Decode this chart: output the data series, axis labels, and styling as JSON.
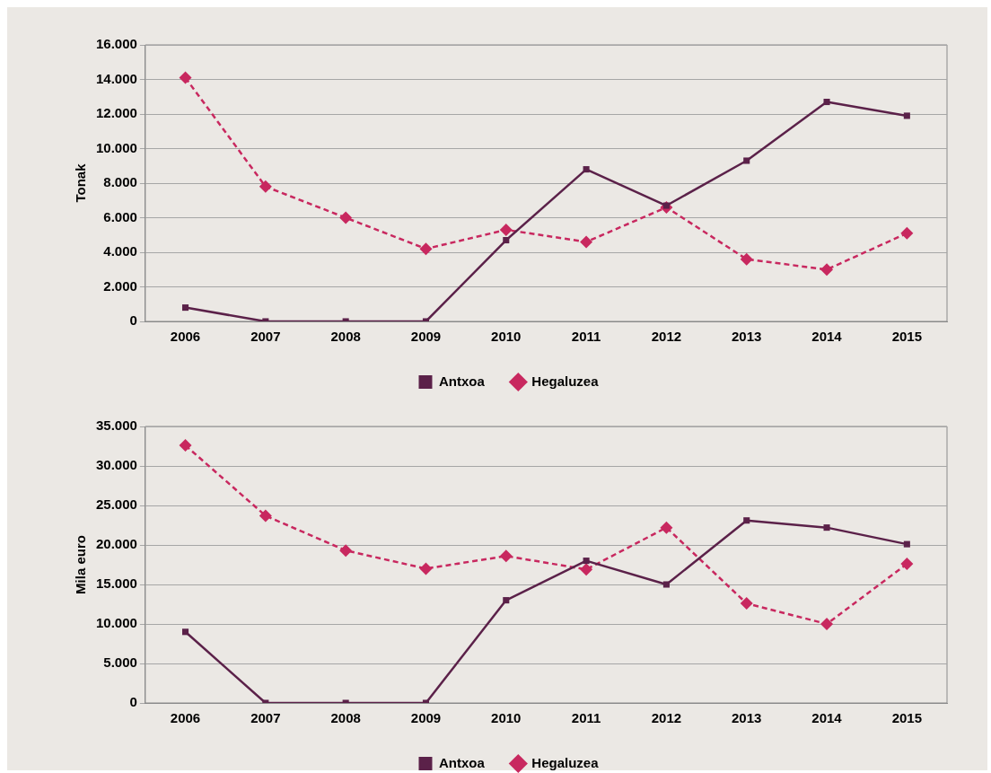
{
  "chart_data": [
    {
      "type": "line",
      "ylabel": "Tonak",
      "categories": [
        "2006",
        "2007",
        "2008",
        "2009",
        "2010",
        "2011",
        "2012",
        "2013",
        "2014",
        "2015"
      ],
      "series": [
        {
          "name": "Antxoa",
          "color": "#5b2149",
          "marker": "square",
          "line_style": "solid",
          "values": [
            800,
            0,
            0,
            0,
            4700,
            8800,
            6700,
            9300,
            12700,
            11900
          ]
        },
        {
          "name": "Hegaluzea",
          "color": "#c8285f",
          "marker": "diamond",
          "line_style": "dashed",
          "values": [
            14100,
            7800,
            6000,
            4200,
            5300,
            4600,
            6600,
            3600,
            3000,
            5100
          ]
        }
      ],
      "ylim": [
        0,
        16000
      ],
      "yticks": [
        {
          "value": 0,
          "label": "0"
        },
        {
          "value": 2000,
          "label": "2.000"
        },
        {
          "value": 4000,
          "label": "4.000"
        },
        {
          "value": 6000,
          "label": "6.000"
        },
        {
          "value": 8000,
          "label": "8.000"
        },
        {
          "value": 10000,
          "label": "10.000"
        },
        {
          "value": 12000,
          "label": "12.000"
        },
        {
          "value": 14000,
          "label": "14.000"
        },
        {
          "value": 16000,
          "label": "16.000"
        }
      ],
      "grid": "y",
      "legend": "bottom"
    },
    {
      "type": "line",
      "ylabel": "Mila euro",
      "categories": [
        "2006",
        "2007",
        "2008",
        "2009",
        "2010",
        "2011",
        "2012",
        "2013",
        "2014",
        "2015"
      ],
      "series": [
        {
          "name": "Antxoa",
          "color": "#5b2149",
          "marker": "square",
          "line_style": "solid",
          "values": [
            9000,
            0,
            0,
            0,
            13000,
            18000,
            15000,
            23100,
            22200,
            20100
          ]
        },
        {
          "name": "Hegaluzea",
          "color": "#c8285f",
          "marker": "diamond",
          "line_style": "dashed",
          "values": [
            32600,
            23700,
            19300,
            17000,
            18600,
            16900,
            22200,
            12600,
            10000,
            17600
          ]
        }
      ],
      "ylim": [
        0,
        35000
      ],
      "yticks": [
        {
          "value": 0,
          "label": "0"
        },
        {
          "value": 5000,
          "label": "5.000"
        },
        {
          "value": 10000,
          "label": "10.000"
        },
        {
          "value": 15000,
          "label": "15.000"
        },
        {
          "value": 20000,
          "label": "20.000"
        },
        {
          "value": 25000,
          "label": "25.000"
        },
        {
          "value": 30000,
          "label": "30.000"
        },
        {
          "value": 35000,
          "label": "35.000"
        }
      ],
      "grid": "y",
      "legend": "bottom"
    }
  ]
}
